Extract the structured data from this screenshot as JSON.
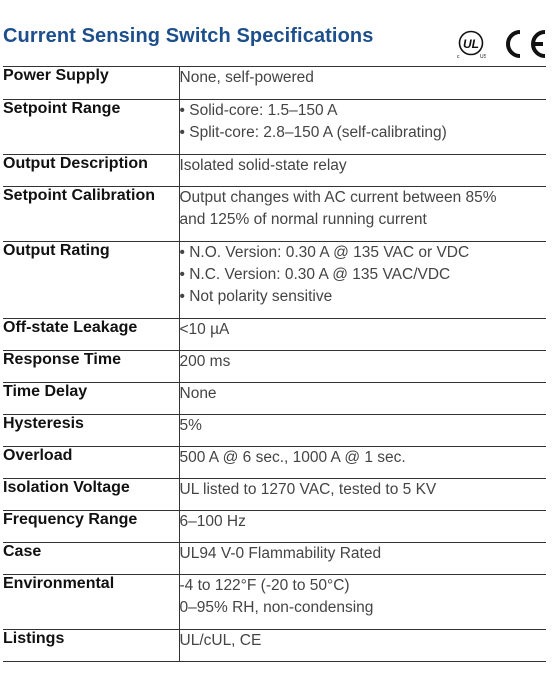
{
  "title": "Current Sensing Switch Specifications",
  "logos": {
    "ul": "UL/cUL listed mark",
    "ce": "CE"
  },
  "colors": {
    "title": "#1d4f8c",
    "border": "#333333"
  },
  "rows": [
    {
      "key": "Power Supply",
      "lines": [
        "None, self-powered"
      ]
    },
    {
      "key": "Setpoint Range",
      "lines": [
        "• Solid-core: 1.5–150 A",
        "• Split-core: 2.8–150 A (self-calibrating)"
      ]
    },
    {
      "key": "Output Description",
      "lines": [
        "Isolated solid-state relay"
      ]
    },
    {
      "key": "Setpoint Calibration",
      "lines": [
        "Output changes with AC current between 85%",
        "and 125% of normal running current"
      ]
    },
    {
      "key": "Output Rating",
      "lines": [
        "• N.O. Version: 0.30 A @ 135 VAC or VDC",
        "• N.C. Version: 0.30 A @ 135 VAC/VDC",
        "• Not polarity sensitive"
      ]
    },
    {
      "key": "Off-state Leakage",
      "lines": [
        "<10 µA"
      ]
    },
    {
      "key": "Response Time",
      "lines": [
        "200 ms"
      ]
    },
    {
      "key": "Time Delay",
      "lines": [
        "None"
      ]
    },
    {
      "key": "Hysteresis",
      "lines": [
        "5%"
      ]
    },
    {
      "key": "Overload",
      "lines": [
        "500 A @ 6 sec., 1000 A @ 1 sec."
      ]
    },
    {
      "key": "Isolation Voltage",
      "lines": [
        "UL listed to 1270 VAC, tested to 5 KV"
      ]
    },
    {
      "key": "Frequency Range",
      "lines": [
        "6–100 Hz"
      ]
    },
    {
      "key": "Case",
      "lines": [
        "UL94 V-0 Flammability Rated"
      ]
    },
    {
      "key": "Environmental",
      "lines": [
        "-4 to 122°F (-20 to 50°C)",
        "0–95% RH, non-condensing"
      ]
    },
    {
      "key": "Listings",
      "lines": [
        "UL/cUL, CE"
      ]
    }
  ]
}
